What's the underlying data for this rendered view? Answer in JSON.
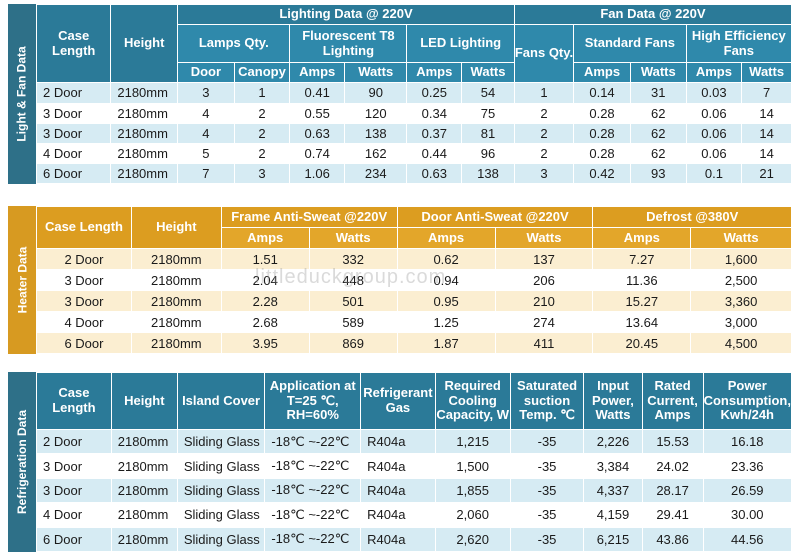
{
  "watermark": "littleduckgroup.com",
  "panel1": {
    "side_label": "Light & Fan Data",
    "h_case": "Case Length",
    "h_height": "Height",
    "h_lighting": "Lighting Data @ 220V",
    "h_fan": "Fan Data @ 220V",
    "h_lamps": "Lamps Qty.",
    "h_fluor": "Fluorescent T8 Lighting",
    "h_led": "LED Lighting",
    "h_fans_qty": "Fans Qty.",
    "h_std_fans": "Standard Fans",
    "h_hi_eff": "High Efficiency Fans",
    "h_door": "Door",
    "h_canopy": "Canopy",
    "h_amps": "Amps",
    "h_watts": "Watts",
    "rows": [
      [
        "2 Door",
        "2180mm",
        "3",
        "1",
        "0.41",
        "90",
        "0.25",
        "54",
        "1",
        "0.14",
        "31",
        "0.03",
        "7"
      ],
      [
        "3 Door",
        "2180mm",
        "4",
        "2",
        "0.55",
        "120",
        "0.34",
        "75",
        "2",
        "0.28",
        "62",
        "0.06",
        "14"
      ],
      [
        "3 Door",
        "2180mm",
        "4",
        "2",
        "0.63",
        "138",
        "0.37",
        "81",
        "2",
        "0.28",
        "62",
        "0.06",
        "14"
      ],
      [
        "4 Door",
        "2180mm",
        "5",
        "2",
        "0.74",
        "162",
        "0.44",
        "96",
        "2",
        "0.28",
        "62",
        "0.06",
        "14"
      ],
      [
        "6 Door",
        "2180mm",
        "7",
        "3",
        "1.06",
        "234",
        "0.63",
        "138",
        "3",
        "0.42",
        "93",
        "0.1",
        "21"
      ]
    ]
  },
  "panel2": {
    "side_label": "Heater Data",
    "h_case": "Case Length",
    "h_height": "Height",
    "h_frame": "Frame Anti-Sweat @220V",
    "h_door": "Door Anti-Sweat @220V",
    "h_defrost": "Defrost @380V",
    "h_amps": "Amps",
    "h_watts": "Watts",
    "rows": [
      [
        "2 Door",
        "2180mm",
        "1.51",
        "332",
        "0.62",
        "137",
        "7.27",
        "1,600"
      ],
      [
        "3 Door",
        "2180mm",
        "2.04",
        "448",
        "0.94",
        "206",
        "11.36",
        "2,500"
      ],
      [
        "3 Door",
        "2180mm",
        "2.28",
        "501",
        "0.95",
        "210",
        "15.27",
        "3,360"
      ],
      [
        "4 Door",
        "2180mm",
        "2.68",
        "589",
        "1.25",
        "274",
        "13.64",
        "3,000"
      ],
      [
        "6 Door",
        "2180mm",
        "3.95",
        "869",
        "1.87",
        "411",
        "20.45",
        "4,500"
      ]
    ]
  },
  "panel3": {
    "side_label": "Refrigeration Data",
    "h_case": "Case Length",
    "h_height": "Height",
    "h_island": "Island Cover",
    "h_app": "Application at T=25 ℃, RH=60%",
    "h_refrig": "Refrigerant Gas",
    "h_cooling": "Required Cooling Capacity, W",
    "h_sat": "Saturated suction Temp. ℃",
    "h_input": "Input Power, Watts",
    "h_rated": "Rated Current, Amps",
    "h_power": "Power Consumption, Kwh/24h",
    "rows": [
      [
        "2 Door",
        "2180mm",
        "Sliding Glass",
        "-18℃ ~-22℃",
        "R404a",
        "1,215",
        "-35",
        "2,226",
        "15.53",
        "16.18"
      ],
      [
        "3 Door",
        "2180mm",
        "Sliding Glass",
        "-18℃ ~-22℃",
        "R404a",
        "1,500",
        "-35",
        "3,384",
        "24.02",
        "23.36"
      ],
      [
        "3 Door",
        "2180mm",
        "Sliding Glass",
        "-18℃ ~-22℃",
        "R404a",
        "1,855",
        "-35",
        "4,337",
        "28.17",
        "26.59"
      ],
      [
        "4 Door",
        "2180mm",
        "Sliding Glass",
        "-18℃ ~-22℃",
        "R404a",
        "2,060",
        "-35",
        "4,159",
        "29.41",
        "30.00"
      ],
      [
        "6 Door",
        "2180mm",
        "Sliding Glass",
        "-18℃ ~-22℃",
        "R404a",
        "2,620",
        "-35",
        "6,215",
        "43.86",
        "44.56"
      ]
    ]
  }
}
